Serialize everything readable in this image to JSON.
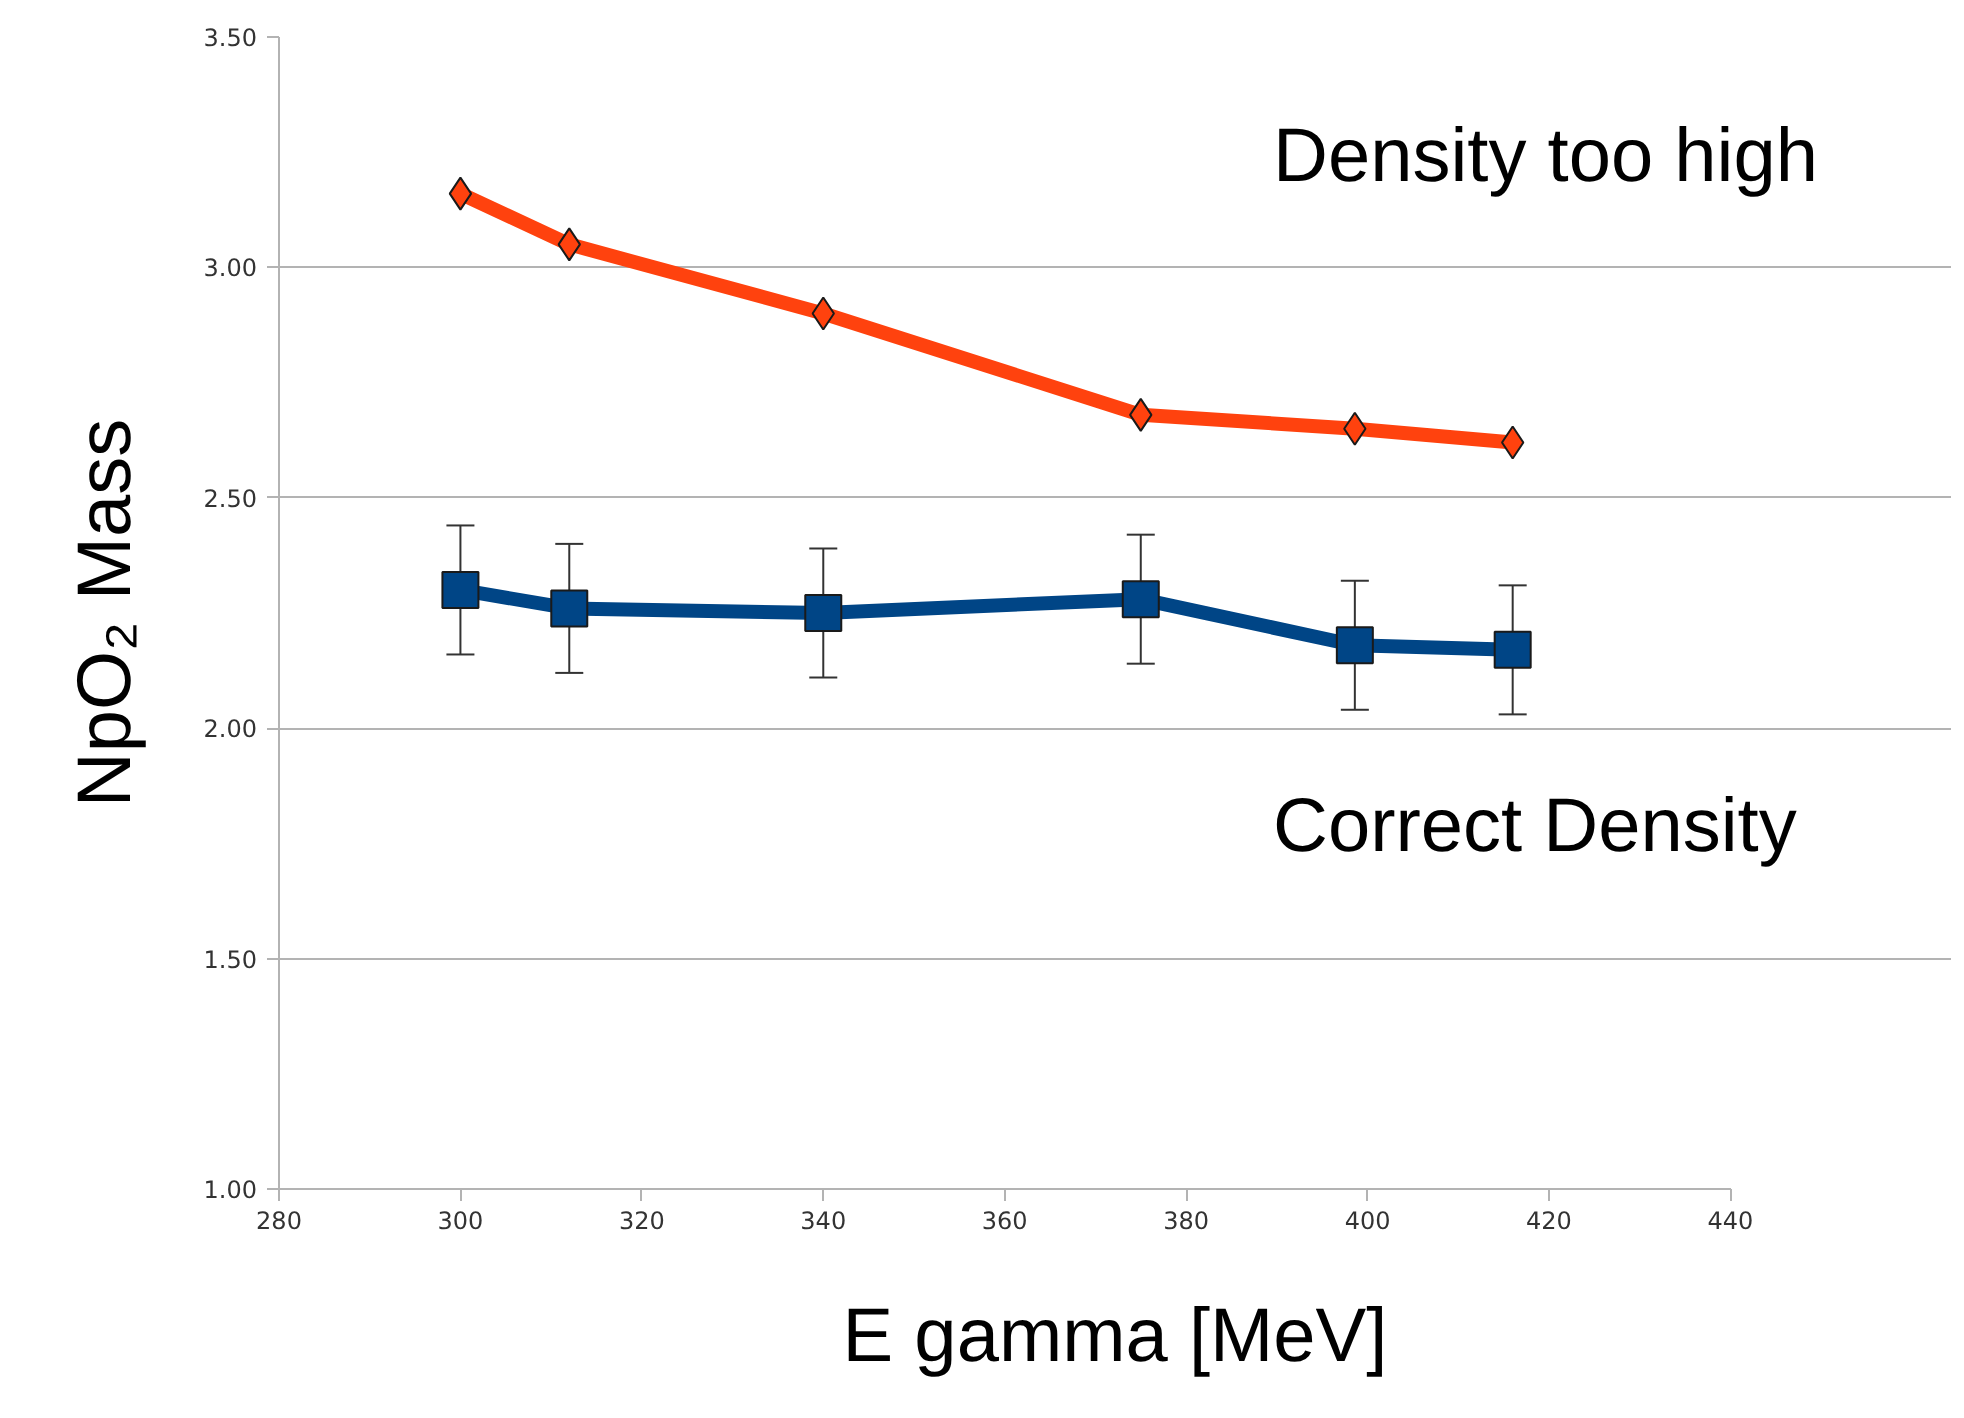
{
  "chart_data": {
    "type": "line",
    "xlabel": "E gamma [MeV]",
    "ylabel": "NpO₂ Mass",
    "x": [
      300,
      312,
      340,
      375,
      398.6,
      416
    ],
    "series": [
      {
        "color": "#ff420e",
        "values": [
          3.16,
          3.05,
          2.9,
          2.68,
          2.65,
          2.62
        ],
        "marker": "diamond"
      },
      {
        "color": "#004586",
        "values": [
          2.3,
          2.26,
          2.25,
          2.28,
          2.18,
          2.17
        ],
        "marker": "square",
        "errors": [
          0.14,
          0.14,
          0.14,
          0.14,
          0.14,
          0.14
        ]
      }
    ],
    "xlim": [
      280,
      440
    ],
    "xticks": [
      {
        "value": 280,
        "label": "280"
      },
      {
        "value": 300,
        "label": "300"
      },
      {
        "value": 320,
        "label": "320"
      },
      {
        "value": 340,
        "label": "340"
      },
      {
        "value": 360,
        "label": "360"
      },
      {
        "value": 380,
        "label": "380"
      },
      {
        "value": 400,
        "label": "400"
      },
      {
        "value": 420,
        "label": "420"
      },
      {
        "value": 440,
        "label": "440"
      }
    ],
    "ylim": [
      1.0,
      3.5
    ],
    "yticks": [
      {
        "value": 1.0,
        "label": "1.00"
      },
      {
        "value": 1.5,
        "label": "1.50"
      },
      {
        "value": 2.0,
        "label": "2.00"
      },
      {
        "value": 2.5,
        "label": "2.50"
      },
      {
        "value": 3.0,
        "label": "3.00"
      },
      {
        "value": 3.5,
        "label": "3.50"
      }
    ],
    "annotations": [
      "Density too high",
      "Correct Density"
    ],
    "grid": "y",
    "line_style": "solid"
  }
}
